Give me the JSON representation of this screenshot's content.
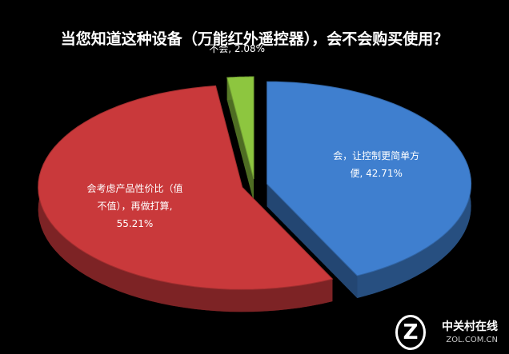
{
  "chart_data": {
    "type": "pie3d",
    "title": "当您知道这种设备（万能红外遥控器），会不会购买使用？",
    "categories": [
      "会，让控制更简单方便",
      "会考虑产品性价比（值不值），再做打算",
      "不会"
    ],
    "values": [
      42.71,
      55.21,
      2.08
    ],
    "value_labels": [
      "42.71%",
      "55.21%",
      "2.08%"
    ],
    "label_separator": ", ",
    "colors": [
      "#3f7fcf",
      "#c9393b",
      "#8dc63f"
    ],
    "watermark": {
      "brand": "中关村在线",
      "site": "ZOL.COM.CN"
    }
  }
}
